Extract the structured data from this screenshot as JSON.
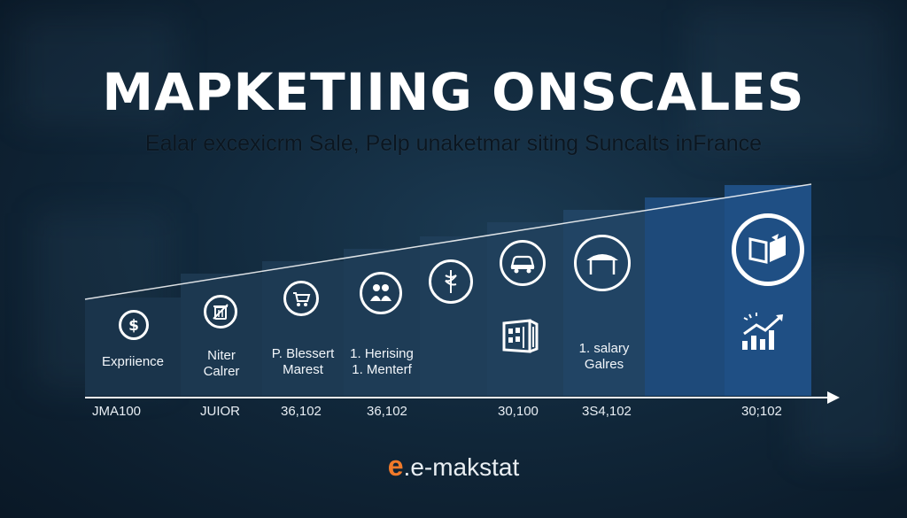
{
  "title": "MAPKETIING ONSCALES",
  "subtitle": "Ealar excexicrm Sale, Pelp unaketmar siting Suncalts inFrance",
  "columns": [
    {
      "label_lines": [
        "Expriience"
      ],
      "icon": "dollar-icon"
    },
    {
      "label_lines": [
        "Niter",
        "Calrer"
      ],
      "icon": "trash-icon"
    },
    {
      "label_lines": [
        "P. Blessert",
        "Marest"
      ],
      "icon": "cart-icon"
    },
    {
      "label_lines": [
        "1. Herising",
        "1. Menterf"
      ],
      "icon": "people-icon"
    },
    {
      "label_lines": [],
      "icon": "caduceus-icon"
    },
    {
      "label_lines": [],
      "icon": "car-icon"
    },
    {
      "label_lines": [
        "1. salary",
        "Galres"
      ],
      "icon": "pavilion-icon"
    },
    {
      "label_lines": [],
      "icon": ""
    },
    {
      "label_lines": [],
      "icon": "book-icon"
    }
  ],
  "extra_icons": {
    "building": "building-icon",
    "growth": "growth-chart-icon"
  },
  "baseline_values": [
    "JMA100",
    "JUIOR",
    "36,102",
    "36,102",
    "30,100",
    "3S4,102",
    "30;102"
  ],
  "logo": {
    "mark": "e",
    "text": ".e-makstat"
  },
  "colors": {
    "background": "#11283b",
    "column_base": "#1c3b55",
    "column_highlight": "#1f4f84",
    "accent_logo": "#f07a2a"
  }
}
